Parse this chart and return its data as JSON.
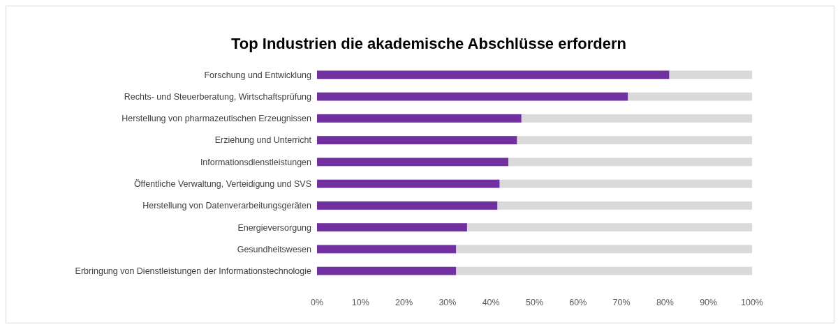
{
  "chart_data": {
    "type": "bar",
    "orientation": "horizontal",
    "stacked": true,
    "title": "Top Industrien die akademische Abschlüsse erfordern",
    "categories": [
      "Forschung und Entwicklung",
      "Rechts- und Steuerberatung, Wirtschaftsprüfung",
      "Herstellung von pharmazeutischen Erzeugnissen",
      "Erziehung und Unterricht",
      "Informationsdienstleistungen",
      "Öffentliche Verwaltung, Verteidigung und SVS",
      "Herstellung von Datenverarbeitungsgeräten",
      "Energieversorgung",
      "Gesundheitswesen",
      "Erbringung von Dienstleistungen der Informationstechnologie"
    ],
    "series": [
      {
        "color": "#7030a0",
        "values": [
          81,
          71.5,
          47,
          46,
          44,
          42,
          41.5,
          34.5,
          32,
          32
        ]
      },
      {
        "color": "#d9d9d9",
        "values": [
          19,
          28.5,
          53,
          54,
          56,
          58,
          58.5,
          65.5,
          68,
          68
        ]
      }
    ],
    "xlim": [
      0,
      100
    ],
    "xticks": [
      {
        "value": 0,
        "label": "0%"
      },
      {
        "value": 10,
        "label": "10%"
      },
      {
        "value": 20,
        "label": "20%"
      },
      {
        "value": 30,
        "label": "30%"
      },
      {
        "value": 40,
        "label": "40%"
      },
      {
        "value": 50,
        "label": "50%"
      },
      {
        "value": 60,
        "label": "60%"
      },
      {
        "value": 70,
        "label": "70%"
      },
      {
        "value": 80,
        "label": "80%"
      },
      {
        "value": 90,
        "label": "90%"
      },
      {
        "value": 100,
        "label": "100%"
      }
    ],
    "grid": false
  }
}
